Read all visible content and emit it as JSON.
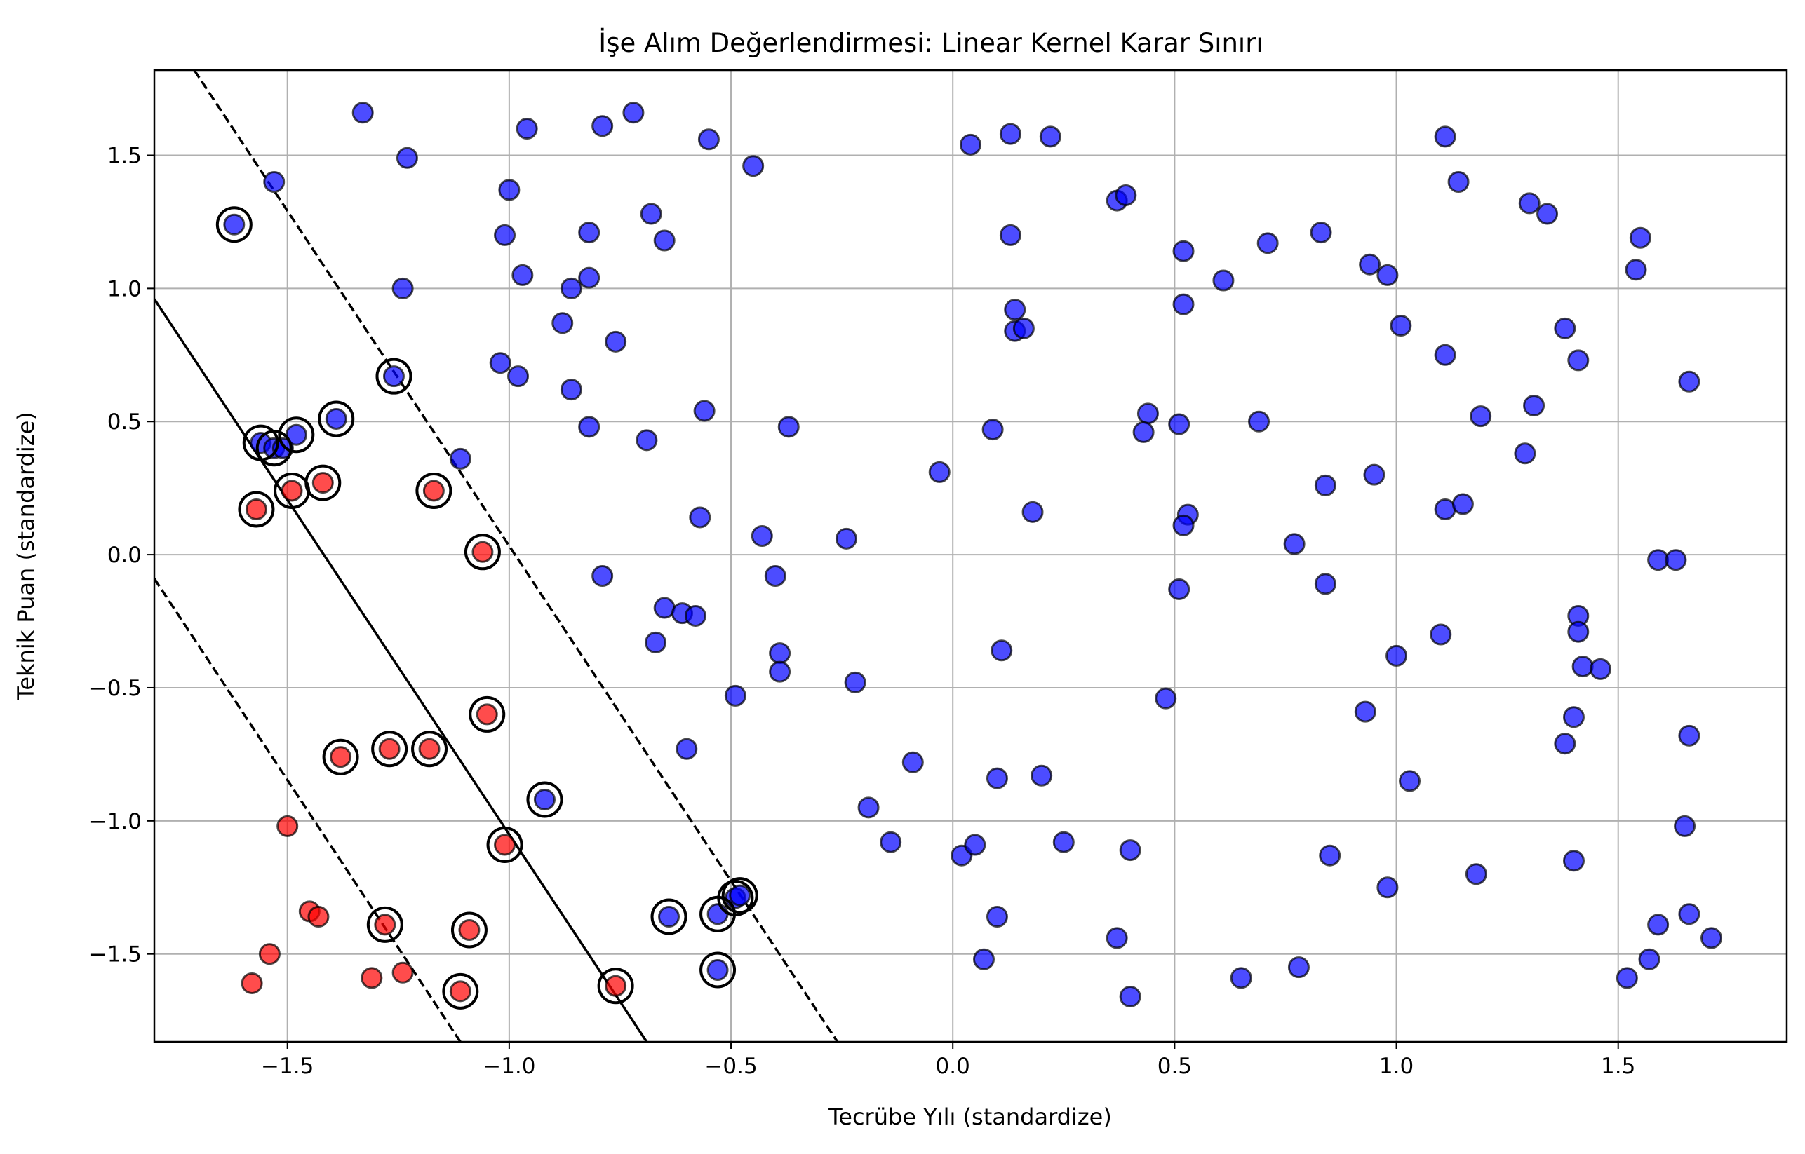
{
  "chart_data": {
    "type": "scatter",
    "title": "İşe Alım Değerlendirmesi: Linear Kernel Karar Sınırı",
    "xlabel": "Tecrübe Yılı (standardize)",
    "ylabel": "Teknik Puan (standardize)",
    "xlim": [
      -1.8,
      1.88
    ],
    "ylim": [
      -1.83,
      1.82
    ],
    "grid": true,
    "xticks": [
      -1.5,
      -1.0,
      -0.5,
      0.0,
      0.5,
      1.0,
      1.5
    ],
    "xtick_labels": [
      "−1.5",
      "−1.0",
      "−0.5",
      "0.0",
      "0.5",
      "1.0",
      "1.5"
    ],
    "yticks": [
      -1.5,
      -1.0,
      -0.5,
      0.0,
      0.5,
      1.0,
      1.5
    ],
    "ytick_labels": [
      "−1.5",
      "−1.0",
      "−0.5",
      "0.0",
      "0.5",
      "1.0",
      "1.5"
    ],
    "colors": {
      "class_red": "#ff0000",
      "class_blue": "#0000ff",
      "grid": "#b0b0b0"
    },
    "decision_boundary": [
      [
        -1.8,
        0.96
      ],
      [
        -0.69,
        -1.83
      ]
    ],
    "margin_upper": [
      [
        -1.71,
        1.82
      ],
      [
        -0.26,
        -1.83
      ]
    ],
    "margin_lower": [
      [
        -1.8,
        -0.09
      ],
      [
        -1.11,
        -1.83
      ]
    ],
    "series": [
      {
        "color": "#ff0000",
        "points": [
          [
            -1.57,
            0.17
          ],
          [
            -1.49,
            0.24
          ],
          [
            -1.42,
            0.27
          ],
          [
            -1.17,
            0.24
          ],
          [
            -1.06,
            0.01
          ],
          [
            -1.05,
            -0.6
          ],
          [
            -1.38,
            -0.76
          ],
          [
            -1.27,
            -0.73
          ],
          [
            -1.18,
            -0.73
          ],
          [
            -1.5,
            -1.02
          ],
          [
            -1.01,
            -1.09
          ],
          [
            -1.45,
            -1.34
          ],
          [
            -1.43,
            -1.36
          ],
          [
            -1.28,
            -1.39
          ],
          [
            -1.09,
            -1.41
          ],
          [
            -1.54,
            -1.5
          ],
          [
            -1.58,
            -1.61
          ],
          [
            -1.31,
            -1.59
          ],
          [
            -1.24,
            -1.57
          ],
          [
            -1.11,
            -1.64
          ],
          [
            -0.76,
            -1.62
          ]
        ]
      },
      {
        "color": "#0000ff",
        "points": [
          [
            -1.62,
            1.24
          ],
          [
            -1.53,
            1.4
          ],
          [
            -1.33,
            1.66
          ],
          [
            -1.23,
            1.49
          ],
          [
            -1.24,
            1.0
          ],
          [
            -1.26,
            0.67
          ],
          [
            -1.39,
            0.51
          ],
          [
            -1.56,
            0.42
          ],
          [
            -1.53,
            0.4
          ],
          [
            -1.51,
            0.4
          ],
          [
            -1.48,
            0.45
          ],
          [
            -1.11,
            0.36
          ],
          [
            -1.0,
            1.37
          ],
          [
            -1.01,
            1.2
          ],
          [
            -0.96,
            1.6
          ],
          [
            -0.97,
            1.05
          ],
          [
            -0.98,
            0.67
          ],
          [
            -1.02,
            0.72
          ],
          [
            -0.79,
            1.61
          ],
          [
            -0.72,
            1.66
          ],
          [
            -0.82,
            1.21
          ],
          [
            -0.82,
            1.04
          ],
          [
            -0.86,
            1.0
          ],
          [
            -0.88,
            0.87
          ],
          [
            -0.86,
            0.62
          ],
          [
            -0.82,
            0.48
          ],
          [
            -0.76,
            0.8
          ],
          [
            -0.69,
            0.43
          ],
          [
            -0.68,
            1.28
          ],
          [
            -0.65,
            1.18
          ],
          [
            -0.55,
            1.56
          ],
          [
            -0.45,
            1.46
          ],
          [
            -0.56,
            0.54
          ],
          [
            -0.37,
            0.48
          ],
          [
            -0.57,
            0.14
          ],
          [
            -0.43,
            0.07
          ],
          [
            -0.24,
            0.06
          ],
          [
            -0.79,
            -0.08
          ],
          [
            -0.4,
            -0.08
          ],
          [
            -0.65,
            -0.2
          ],
          [
            -0.61,
            -0.22
          ],
          [
            -0.58,
            -0.23
          ],
          [
            -0.67,
            -0.33
          ],
          [
            -0.39,
            -0.37
          ],
          [
            -0.39,
            -0.44
          ],
          [
            -0.49,
            -0.53
          ],
          [
            -0.22,
            -0.48
          ],
          [
            -0.6,
            -0.73
          ],
          [
            -0.92,
            -0.92
          ],
          [
            -0.19,
            -0.95
          ],
          [
            -0.14,
            -1.08
          ],
          [
            -0.09,
            -0.78
          ],
          [
            -0.64,
            -1.36
          ],
          [
            -0.53,
            -1.35
          ],
          [
            -0.49,
            -1.29
          ],
          [
            -0.48,
            -1.28
          ],
          [
            -0.53,
            -1.56
          ],
          [
            -0.03,
            0.31
          ],
          [
            0.04,
            1.54
          ],
          [
            0.13,
            1.58
          ],
          [
            0.22,
            1.57
          ],
          [
            0.13,
            1.2
          ],
          [
            0.14,
            0.92
          ],
          [
            0.14,
            0.84
          ],
          [
            0.16,
            0.85
          ],
          [
            0.09,
            0.47
          ],
          [
            0.18,
            0.16
          ],
          [
            0.11,
            -0.36
          ],
          [
            0.02,
            -1.13
          ],
          [
            0.05,
            -1.09
          ],
          [
            0.1,
            -0.84
          ],
          [
            0.2,
            -0.83
          ],
          [
            0.25,
            -1.08
          ],
          [
            0.1,
            -1.36
          ],
          [
            0.07,
            -1.52
          ],
          [
            0.37,
            1.33
          ],
          [
            0.39,
            1.35
          ],
          [
            0.52,
            1.14
          ],
          [
            0.61,
            1.03
          ],
          [
            0.71,
            1.17
          ],
          [
            0.52,
            0.94
          ],
          [
            0.44,
            0.53
          ],
          [
            0.43,
            0.46
          ],
          [
            0.51,
            0.49
          ],
          [
            0.69,
            0.5
          ],
          [
            0.53,
            0.15
          ],
          [
            0.52,
            0.11
          ],
          [
            0.51,
            -0.13
          ],
          [
            0.48,
            -0.54
          ],
          [
            0.37,
            -1.44
          ],
          [
            0.4,
            -1.11
          ],
          [
            0.4,
            -1.66
          ],
          [
            0.65,
            -1.59
          ],
          [
            0.78,
            -1.55
          ],
          [
            0.83,
            1.21
          ],
          [
            0.94,
            1.09
          ],
          [
            0.98,
            1.05
          ],
          [
            1.01,
            0.86
          ],
          [
            0.84,
            0.26
          ],
          [
            0.95,
            0.3
          ],
          [
            0.77,
            0.04
          ],
          [
            0.84,
            -0.11
          ],
          [
            0.93,
            -0.59
          ],
          [
            1.0,
            -0.38
          ],
          [
            1.03,
            -0.85
          ],
          [
            0.85,
            -1.13
          ],
          [
            0.98,
            -1.25
          ],
          [
            1.11,
            1.57
          ],
          [
            1.14,
            1.4
          ],
          [
            1.3,
            1.32
          ],
          [
            1.34,
            1.28
          ],
          [
            1.11,
            0.75
          ],
          [
            1.19,
            0.52
          ],
          [
            1.31,
            0.56
          ],
          [
            1.29,
            0.38
          ],
          [
            1.11,
            0.17
          ],
          [
            1.15,
            0.19
          ],
          [
            1.1,
            -0.3
          ],
          [
            1.18,
            -1.2
          ],
          [
            1.38,
            0.85
          ],
          [
            1.41,
            0.73
          ],
          [
            1.55,
            1.19
          ],
          [
            1.54,
            1.07
          ],
          [
            1.66,
            0.65
          ],
          [
            1.59,
            -0.02
          ],
          [
            1.63,
            -0.02
          ],
          [
            1.41,
            -0.23
          ],
          [
            1.41,
            -0.29
          ],
          [
            1.42,
            -0.42
          ],
          [
            1.46,
            -0.43
          ],
          [
            1.4,
            -0.61
          ],
          [
            1.38,
            -0.71
          ],
          [
            1.4,
            -1.15
          ],
          [
            1.66,
            -0.68
          ],
          [
            1.65,
            -1.02
          ],
          [
            1.66,
            -1.35
          ],
          [
            1.59,
            -1.39
          ],
          [
            1.57,
            -1.52
          ],
          [
            1.52,
            -1.59
          ],
          [
            1.71,
            -1.44
          ]
        ]
      }
    ],
    "support_vectors": [
      [
        -1.62,
        1.24
      ],
      [
        -1.26,
        0.67
      ],
      [
        -1.39,
        0.51
      ],
      [
        -1.56,
        0.42
      ],
      [
        -1.53,
        0.4
      ],
      [
        -1.48,
        0.45
      ],
      [
        -1.57,
        0.17
      ],
      [
        -1.49,
        0.24
      ],
      [
        -1.42,
        0.27
      ],
      [
        -1.17,
        0.24
      ],
      [
        -1.06,
        0.01
      ],
      [
        -1.05,
        -0.6
      ],
      [
        -1.38,
        -0.76
      ],
      [
        -1.27,
        -0.73
      ],
      [
        -1.18,
        -0.73
      ],
      [
        -0.92,
        -0.92
      ],
      [
        -1.01,
        -1.09
      ],
      [
        -1.28,
        -1.39
      ],
      [
        -1.09,
        -1.41
      ],
      [
        -1.11,
        -1.64
      ],
      [
        -0.76,
        -1.62
      ],
      [
        -0.64,
        -1.36
      ],
      [
        -0.53,
        -1.35
      ],
      [
        -0.49,
        -1.29
      ],
      [
        -0.48,
        -1.28
      ],
      [
        -0.53,
        -1.56
      ]
    ]
  }
}
